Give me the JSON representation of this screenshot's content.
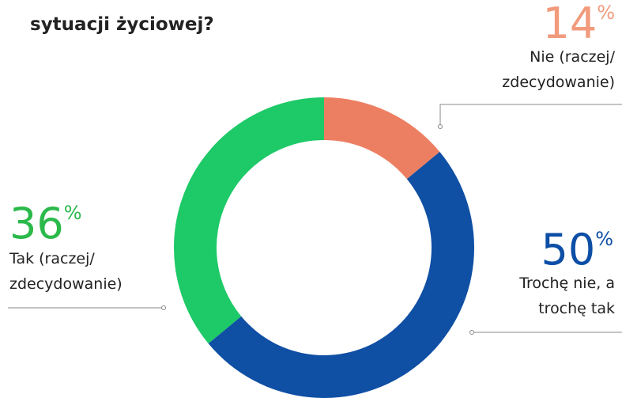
{
  "chart_data": {
    "type": "donut",
    "title": "sytuacji życiowej?",
    "categories": [
      "Nie (raczej/ zdecydowanie)",
      "Trochę nie, a trochę tak",
      "Tak (raczej/ zdecydowanie)"
    ],
    "values": [
      14,
      50,
      36
    ],
    "value_labels": [
      "14%",
      "50%",
      "36%"
    ],
    "colors": [
      "#ec7f62",
      "#0f4fa4",
      "#1ec967"
    ]
  }
}
